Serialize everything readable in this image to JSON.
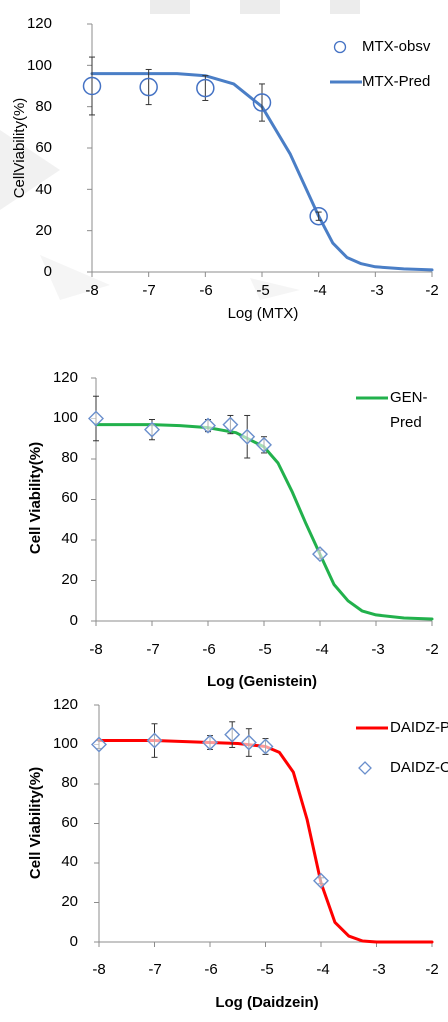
{
  "chart_data": [
    {
      "type": "line",
      "xlabel": "Log (MTX)",
      "ylabel": "CellViability(%)",
      "xlim": [
        -8,
        -2
      ],
      "ylim": [
        0,
        120
      ],
      "xticks": [
        "-8",
        "-7",
        "-6",
        "-5",
        "-4",
        "-3",
        "-2"
      ],
      "yticks": [
        "0",
        "20",
        "40",
        "60",
        "80",
        "100",
        "120"
      ],
      "grid": false,
      "legend_position": "top-right",
      "series": [
        {
          "name": "MTX-obsv",
          "kind": "marker",
          "marker": "circle",
          "color": "#4472C4",
          "x": [
            -8,
            -7,
            -6,
            -5,
            -4
          ],
          "y": [
            90,
            89.5,
            89,
            82,
            27
          ],
          "err": [
            14,
            8.5,
            6,
            9,
            2
          ]
        },
        {
          "name": "MTX-Pred",
          "kind": "line",
          "color": "#4A7EC6",
          "x": [
            -8,
            -7.5,
            -7,
            -6.5,
            -6,
            -5.5,
            -5,
            -4.5,
            -4,
            -3.75,
            -3.5,
            -3.25,
            -3,
            -2.5,
            -2
          ],
          "y": [
            96,
            96,
            96,
            96,
            95,
            91,
            80,
            57,
            27,
            14,
            7,
            4,
            2.5,
            1.5,
            1
          ]
        }
      ]
    },
    {
      "type": "line",
      "xlabel": "Log (Genistein)",
      "ylabel": "Cell Viability(%)",
      "xlim": [
        -8,
        -2
      ],
      "ylim": [
        0,
        120
      ],
      "xticks": [
        "-8",
        "-7",
        "-6",
        "-5",
        "-4",
        "-3",
        "-2"
      ],
      "yticks": [
        "0",
        "20",
        "40",
        "60",
        "80",
        "100",
        "120"
      ],
      "grid": false,
      "legend_position": "top-right",
      "series": [
        {
          "name": "GEN-Pred",
          "name_lines": [
            "GEN-",
            "Pred"
          ],
          "kind": "line",
          "color": "#22B14C",
          "x": [
            -8,
            -7.5,
            -7,
            -6.5,
            -6,
            -5.5,
            -5,
            -4.75,
            -4.5,
            -4.25,
            -4,
            -3.75,
            -3.5,
            -3.25,
            -3,
            -2.5,
            -2
          ],
          "y": [
            97,
            97,
            97,
            96.5,
            95.5,
            93,
            86,
            78,
            64,
            48,
            33,
            18,
            10,
            5,
            3,
            1.5,
            1
          ]
        },
        {
          "kind": "marker",
          "marker": "diamond",
          "color": "#6A8FCC",
          "x": [
            -8,
            -7,
            -6,
            -5.6,
            -5.3,
            -5,
            -4
          ],
          "y": [
            100,
            94.5,
            96.5,
            97,
            91,
            87,
            33
          ],
          "err": [
            11,
            5,
            3,
            4.5,
            10.5,
            4,
            2
          ]
        }
      ]
    },
    {
      "type": "line",
      "xlabel": "Log (Daidzein)",
      "ylabel": "Cell Viability(%)",
      "xlim": [
        -8,
        -2
      ],
      "ylim": [
        0,
        120
      ],
      "xticks": [
        "-8",
        "-7",
        "-6",
        "-5",
        "-4",
        "-3",
        "-2"
      ],
      "yticks": [
        "0",
        "20",
        "40",
        "60",
        "80",
        "100",
        "120"
      ],
      "grid": false,
      "legend_position": "top-right",
      "series": [
        {
          "name": "DAIDZ-Pred",
          "kind": "line",
          "color": "#FF0000",
          "x": [
            -8,
            -7.5,
            -7,
            -6.5,
            -6,
            -5.5,
            -5,
            -4.75,
            -4.5,
            -4.25,
            -4,
            -3.75,
            -3.5,
            -3.25,
            -3,
            -2.5,
            -2
          ],
          "y": [
            102,
            102,
            102,
            101.5,
            101,
            100.5,
            99,
            96,
            86,
            62,
            30,
            10,
            3,
            0.5,
            0,
            0,
            0
          ]
        },
        {
          "name": "DAIDZ-Obs",
          "kind": "marker",
          "marker": "diamond",
          "color": "#6A8FCC",
          "x": [
            -8,
            -7,
            -6,
            -5.6,
            -5.3,
            -5,
            -4
          ],
          "y": [
            100,
            102,
            101,
            105,
            101,
            99,
            31
          ],
          "err": [
            2,
            8.5,
            3.5,
            6.5,
            7,
            4,
            1.5
          ]
        }
      ]
    }
  ]
}
